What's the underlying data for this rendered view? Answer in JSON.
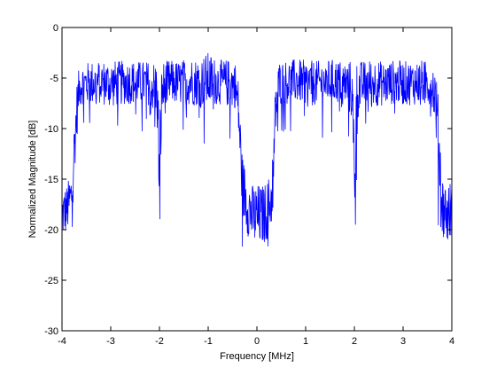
{
  "chart_data": {
    "type": "line",
    "title": "",
    "xlabel": "Frequency [MHz]",
    "ylabel": "Normalized Magnitude [dB]",
    "xlim": [
      -4,
      4
    ],
    "ylim": [
      -30,
      0
    ],
    "xticks": [
      -4,
      -3,
      -2,
      -1,
      0,
      1,
      2,
      3,
      4
    ],
    "yticks": [
      0,
      -5,
      -10,
      -15,
      -20,
      -25,
      -30
    ],
    "grid": false,
    "legend": "none",
    "series": [
      {
        "color": "#0000ff",
        "x": [
          -4.0,
          -3.9,
          -3.8,
          -3.75,
          -3.7,
          -3.65,
          -3.6,
          -3.4,
          -3.2,
          -3.0,
          -2.8,
          -2.6,
          -2.4,
          -2.2,
          -2.05,
          -2.0,
          -1.95,
          -1.8,
          -1.6,
          -1.4,
          -1.2,
          -1.0,
          -0.8,
          -0.6,
          -0.45,
          -0.38,
          -0.3,
          -0.2,
          -0.1,
          0.0,
          0.1,
          0.2,
          0.3,
          0.38,
          0.45,
          0.6,
          0.8,
          1.0,
          1.2,
          1.4,
          1.6,
          1.8,
          1.95,
          2.0,
          2.05,
          2.2,
          2.4,
          2.6,
          2.8,
          3.0,
          3.2,
          3.4,
          3.6,
          3.65,
          3.7,
          3.75,
          3.8,
          3.9,
          4.0
        ],
        "values": [
          -18.5,
          -18,
          -16.5,
          -12,
          -8.5,
          -6,
          -5.6,
          -5.5,
          -5.4,
          -5.6,
          -5.5,
          -5.4,
          -5.5,
          -5.5,
          -6.2,
          -14.5,
          -6.3,
          -5.4,
          -5.5,
          -5.3,
          -5.4,
          -5.2,
          -5.4,
          -5.5,
          -5.6,
          -8,
          -15.5,
          -17.5,
          -18.5,
          -18.8,
          -18.6,
          -18.2,
          -17,
          -8.5,
          -5.5,
          -5.4,
          -5.3,
          -5.4,
          -5.5,
          -5.4,
          -5.3,
          -5.5,
          -6.2,
          -14.5,
          -6.3,
          -5.5,
          -5.4,
          -5.6,
          -5.4,
          -5.5,
          -5.5,
          -5.4,
          -5.7,
          -6.5,
          -9,
          -12.5,
          -17.5,
          -18.5,
          -18
        ],
        "noise_amplitude": [
          2.5,
          2.5,
          2.5,
          2.8,
          3,
          2,
          2,
          2.2,
          2.2,
          2.4,
          2.2,
          2.2,
          2.2,
          2.2,
          3,
          6,
          3,
          2.2,
          2.2,
          2.4,
          2.4,
          2.8,
          2.2,
          2.4,
          2.4,
          3,
          3,
          3,
          3,
          3.4,
          3,
          3,
          3,
          3,
          2.2,
          2.2,
          2.2,
          2.2,
          2.2,
          2.2,
          2.2,
          2.2,
          3,
          6,
          3,
          2.2,
          2.4,
          2.2,
          2.2,
          2.2,
          2.2,
          2.2,
          2.2,
          3,
          3.5,
          4,
          3,
          3,
          3
        ]
      }
    ]
  }
}
